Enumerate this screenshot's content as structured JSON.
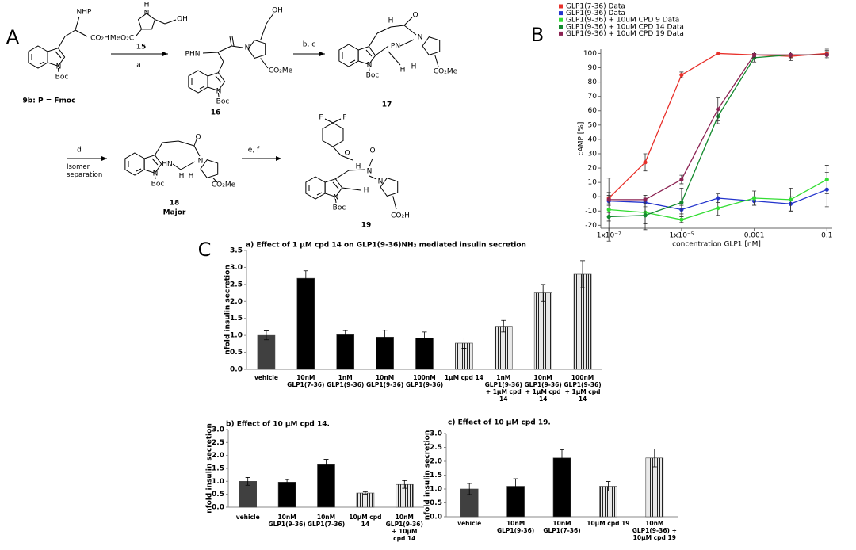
{
  "scheme": {
    "letter": "A",
    "compounds": [
      {
        "label": "9b: P = Fmoc",
        "atoms": [
          "NHP",
          "CO₂H",
          "N",
          "Boc"
        ]
      },
      {
        "label": "15",
        "atoms": [
          "H",
          "N",
          "OH",
          "MeO₂C"
        ]
      },
      {
        "label": "16",
        "atoms": [
          "OH",
          "N",
          "PHN",
          "CO₂Me",
          "N",
          "Boc"
        ]
      },
      {
        "label": "17",
        "atoms": [
          "H",
          "O",
          "PN",
          "N",
          "H",
          "H",
          "N",
          "Boc",
          "CO₂Me"
        ]
      },
      {
        "label": "18",
        "sublabel": "Major",
        "atoms": [
          "O",
          "HN",
          "N",
          "H",
          "H",
          "N",
          "Boc",
          "CO₂Me"
        ]
      },
      {
        "label": "19",
        "atoms": [
          "F",
          "F",
          "O",
          "H",
          "O",
          "N",
          "N",
          "H",
          "N",
          "Boc",
          "CO₂H"
        ]
      }
    ],
    "steps": [
      {
        "reagents": "a"
      },
      {
        "reagents": "b, c"
      },
      {
        "reagents": "d",
        "conditions": "Isomer separation"
      },
      {
        "reagents": "e, f"
      }
    ]
  },
  "chart_data": [
    {
      "type": "line",
      "panel": "B",
      "y_label": "cAMP [%]",
      "x_label": "concentration GLP1 [nM]",
      "xscale": "log",
      "x": [
        1e-07,
        1e-06,
        1e-05,
        0.0001,
        0.001,
        0.01,
        0.1
      ],
      "xlim": [
        6e-08,
        0.14
      ],
      "xticks": [
        {
          "value": 1e-07,
          "label": "1x10⁻⁷"
        },
        {
          "value": 1e-05,
          "label": "1x10⁻⁵"
        },
        0.001,
        0.1
      ],
      "ylim": [
        -22,
        103
      ],
      "yticks": [
        -20,
        -10,
        0,
        10,
        20,
        30,
        40,
        50,
        60,
        70,
        80,
        90,
        100
      ],
      "series": [
        {
          "name": "GLP1(7-36) Data",
          "color": "#e8302a",
          "values": [
            -1,
            24,
            85,
            100,
            99,
            98,
            100
          ],
          "errors": [
            4,
            6,
            2,
            1,
            1,
            3,
            3
          ]
        },
        {
          "name": "GLP1(9-36) Data",
          "color": "#2233cc",
          "values": [
            -3,
            -4,
            -9,
            -1,
            -3,
            -5,
            5
          ],
          "errors": [
            3,
            3,
            3,
            3,
            3,
            5,
            12
          ]
        },
        {
          "name": "GLP1(9-36) + 10uM CPD 9 Data",
          "color": "#33dd33",
          "values": [
            -9,
            -11,
            -16,
            -8,
            -1,
            -2,
            12
          ],
          "errors": [
            22,
            8,
            2,
            5,
            5,
            8,
            10
          ]
        },
        {
          "name": "GLP1(9-36) + 10uM CPD 14 Data",
          "color": "#138a2e",
          "values": [
            -14,
            -13,
            -4,
            56,
            97,
            99,
            99
          ],
          "errors": [
            3,
            10,
            10,
            5,
            3,
            2,
            3
          ]
        },
        {
          "name": "GLP1(9-36) + 10uM CPD 19 Data",
          "color": "#8b2252",
          "values": [
            -2,
            -2,
            12,
            61,
            99,
            99,
            99
          ],
          "errors": [
            3,
            3,
            3,
            8,
            2,
            2,
            3
          ]
        }
      ]
    },
    {
      "type": "bar",
      "panel": "C",
      "title": "a) Effect of 1 µM cpd 14 on GLP1(9-36)NH₂ mediated insulin secretion",
      "y_label": "nfold insulin secretion",
      "categories": [
        "vehicle",
        "10nM GLP1(7-36)",
        "1nM GLP1(9-36)",
        "10nM GLP1(9-36)",
        "100nM GLP1(9-36)",
        "1µM cpd 14",
        "1nM GLP1(9-36) + 1µM cpd 14",
        "10nM GLP1(9-36) + 1µM cpd 14",
        "100nM GLP1(9-36) + 1µM cpd 14"
      ],
      "values": [
        1.0,
        2.68,
        1.02,
        0.95,
        0.92,
        0.77,
        1.27,
        2.25,
        2.8
      ],
      "errors": [
        0.13,
        0.22,
        0.12,
        0.2,
        0.18,
        0.15,
        0.17,
        0.25,
        0.4
      ],
      "bar_styles": [
        "gray",
        "black",
        "black",
        "black",
        "black",
        "striped",
        "striped",
        "striped",
        "striped"
      ],
      "ylim": [
        0,
        3.5
      ],
      "yticks": [
        {
          "value": 0,
          "label": "0.0"
        },
        0.5,
        {
          "value": 1,
          "label": "1.0"
        },
        1.5,
        {
          "value": 2,
          "label": "2.0"
        },
        2.5,
        {
          "value": 3,
          "label": "3.0"
        },
        3.5
      ]
    },
    {
      "type": "bar",
      "title": "b) Effect of 10 µM cpd 14.",
      "y_label": "nfold insulin secretion",
      "categories": [
        "vehicle",
        "10nM GLP1(9-36)",
        "10nM GLP1(7-36)",
        "10µM cpd 14",
        "10nM GLP1(9-36) + 10µM cpd 14"
      ],
      "values": [
        1.0,
        0.97,
        1.65,
        0.55,
        0.88
      ],
      "errors": [
        0.15,
        0.1,
        0.2,
        0.05,
        0.15
      ],
      "bar_styles": [
        "gray",
        "black",
        "black",
        "striped",
        "striped"
      ],
      "ylim": [
        0,
        3
      ],
      "yticks": [
        {
          "value": 0,
          "label": "0.0"
        },
        0.5,
        {
          "value": 1,
          "label": "1.0"
        },
        1.5,
        {
          "value": 2,
          "label": "2.0"
        },
        2.5,
        {
          "value": 3,
          "label": "3.0"
        }
      ]
    },
    {
      "type": "bar",
      "title": "c) Effect of 10 µM cpd 19.",
      "y_label": "nfold insulin secretion",
      "categories": [
        "vehicle",
        "10nM GLP1(9-36)",
        "10nM GLP1(7-36)",
        "10µM cpd 19",
        "10nM GLP1(9-36) + 10µM cpd 19"
      ],
      "values": [
        1.0,
        1.1,
        2.12,
        1.1,
        2.12
      ],
      "errors": [
        0.2,
        0.27,
        0.3,
        0.17,
        0.32
      ],
      "bar_styles": [
        "gray",
        "black",
        "black",
        "striped",
        "striped"
      ],
      "ylim": [
        0,
        3
      ],
      "yticks": [
        {
          "value": 0,
          "label": "0.0"
        },
        0.5,
        {
          "value": 1,
          "label": "1.0"
        },
        1.5,
        {
          "value": 2,
          "label": "2.0"
        },
        2.5,
        {
          "value": 3,
          "label": "3.0"
        }
      ]
    }
  ]
}
